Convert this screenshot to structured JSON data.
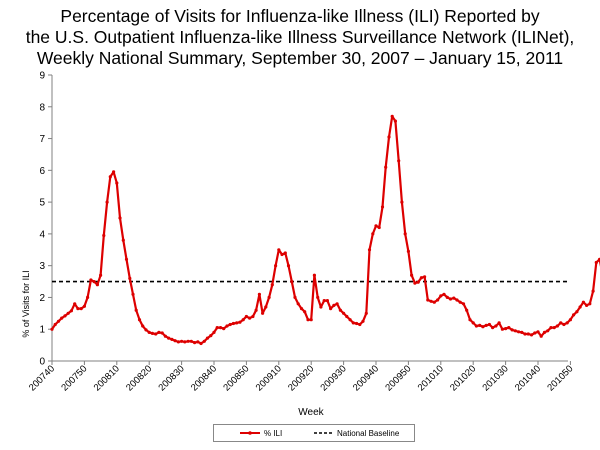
{
  "chart_data": {
    "type": "line",
    "title_lines": [
      "Percentage of Visits for Influenza-like Illness (ILI) Reported by",
      "the U.S. Outpatient Influenza-like Illness Surveillance Network (ILINet),",
      "Weekly National Summary, September 30, 2007 – January 15, 2011"
    ],
    "xlabel": "Week",
    "ylabel": "% of Visits for ILI",
    "ylim": [
      0,
      9
    ],
    "yticks": [
      "0",
      "1",
      "2",
      "3",
      "4",
      "5",
      "6",
      "7",
      "8",
      "9"
    ],
    "xticks": [
      "200740",
      "200750",
      "200810",
      "200820",
      "200830",
      "200840",
      "200850",
      "200910",
      "200920",
      "200930",
      "200940",
      "200950",
      "201010",
      "201020",
      "201030",
      "201040",
      "201050"
    ],
    "grid": false,
    "legend_position": "bottom",
    "colors": {
      "ili": "#dd0000",
      "baseline": "#000000"
    },
    "series": [
      {
        "name": "% ILI",
        "values": [
          1.0,
          1.15,
          1.25,
          1.35,
          1.42,
          1.5,
          1.58,
          1.8,
          1.65,
          1.65,
          1.72,
          2.0,
          2.55,
          2.5,
          2.4,
          2.7,
          3.95,
          5.0,
          5.8,
          5.95,
          5.6,
          4.5,
          3.8,
          3.2,
          2.6,
          2.1,
          1.6,
          1.3,
          1.1,
          0.98,
          0.9,
          0.87,
          0.85,
          0.9,
          0.88,
          0.78,
          0.72,
          0.68,
          0.64,
          0.6,
          0.62,
          0.6,
          0.62,
          0.62,
          0.58,
          0.6,
          0.55,
          0.62,
          0.72,
          0.8,
          0.9,
          1.05,
          1.05,
          1.02,
          1.1,
          1.15,
          1.18,
          1.2,
          1.22,
          1.3,
          1.4,
          1.35,
          1.4,
          1.6,
          2.1,
          1.5,
          1.7,
          2.0,
          2.4,
          3.0,
          3.5,
          3.35,
          3.4,
          3.0,
          2.5,
          2.0,
          1.8,
          1.65,
          1.55,
          1.3,
          1.3,
          2.7,
          2.0,
          1.7,
          1.9,
          1.9,
          1.65,
          1.75,
          1.8,
          1.6,
          1.5,
          1.4,
          1.3,
          1.2,
          1.18,
          1.15,
          1.25,
          1.5,
          3.5,
          4.0,
          4.25,
          4.2,
          4.85,
          6.1,
          7.05,
          7.7,
          7.55,
          6.3,
          5.0,
          4.0,
          3.45,
          2.7,
          2.45,
          2.48,
          2.62,
          2.65,
          1.92,
          1.88,
          1.85,
          1.92,
          2.05,
          2.1,
          2.0,
          1.95,
          1.98,
          1.92,
          1.85,
          1.8,
          1.6,
          1.3,
          1.2,
          1.1,
          1.12,
          1.08,
          1.12,
          1.15,
          1.05,
          1.1,
          1.2,
          1.0,
          1.02,
          1.05,
          0.98,
          0.95,
          0.92,
          0.9,
          0.85,
          0.85,
          0.82,
          0.88,
          0.92,
          0.78,
          0.9,
          0.95,
          1.05,
          1.05,
          1.1,
          1.2,
          1.15,
          1.2,
          1.3,
          1.45,
          1.55,
          1.7,
          1.85,
          1.75,
          1.8,
          2.2,
          3.1,
          3.2,
          2.7,
          2.85,
          2.95
        ]
      },
      {
        "name": "National Baseline",
        "values": [
          2.5
        ]
      }
    ]
  }
}
